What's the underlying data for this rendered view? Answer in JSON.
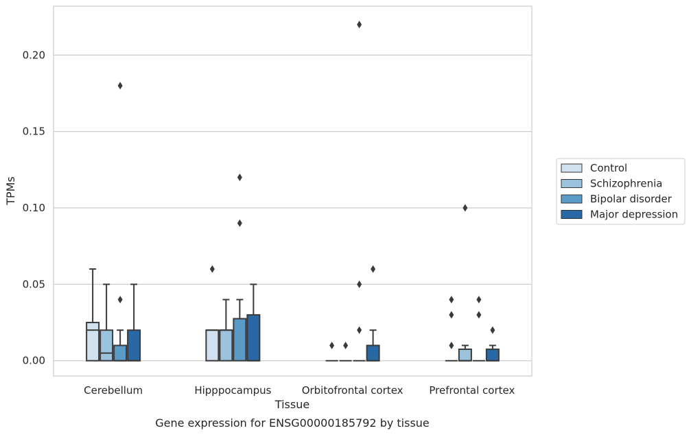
{
  "chart_data": {
    "type": "boxplot",
    "caption": "Gene expression for ENSG00000185792 by tissue",
    "xlabel": "Tissue",
    "ylabel": "TPMs",
    "ylim": [
      -0.01,
      0.232
    ],
    "yticks": [
      0.0,
      0.05,
      0.1,
      0.15,
      0.2
    ],
    "ytick_labels": [
      "0.00",
      "0.05",
      "0.10",
      "0.15",
      "0.20"
    ],
    "grid": "horizontal",
    "legend_position": "right",
    "categories": [
      "Cerebellum",
      "Hipppocampus",
      "Orbitofrontal cortex",
      "Prefrontal cortex"
    ],
    "series": [
      {
        "name": "Control",
        "color": "#d1e1ef",
        "boxes": [
          {
            "q1": 0.0,
            "median": 0.02,
            "q3": 0.025,
            "whisker_low": 0.0,
            "whisker_high": 0.06,
            "outliers": []
          },
          {
            "q1": 0.0,
            "median": 0.02,
            "q3": 0.02,
            "whisker_low": 0.0,
            "whisker_high": 0.02,
            "outliers": [
              0.06
            ]
          },
          {
            "q1": 0.0,
            "median": 0.0,
            "q3": 0.0,
            "whisker_low": 0.0,
            "whisker_high": 0.0,
            "outliers": [
              0.01
            ]
          },
          {
            "q1": 0.0,
            "median": 0.0,
            "q3": 0.0,
            "whisker_low": 0.0,
            "whisker_high": 0.0,
            "outliers": [
              0.01,
              0.03,
              0.04
            ]
          }
        ]
      },
      {
        "name": "Schizophrenia",
        "color": "#9cc3dd",
        "boxes": [
          {
            "q1": 0.0,
            "median": 0.005,
            "q3": 0.02,
            "whisker_low": 0.0,
            "whisker_high": 0.05,
            "outliers": []
          },
          {
            "q1": 0.0,
            "median": 0.02,
            "q3": 0.02,
            "whisker_low": 0.0,
            "whisker_high": 0.04,
            "outliers": []
          },
          {
            "q1": 0.0,
            "median": 0.0,
            "q3": 0.0,
            "whisker_low": 0.0,
            "whisker_high": 0.0,
            "outliers": [
              0.01
            ]
          },
          {
            "q1": 0.0,
            "median": 0.0,
            "q3": 0.0075,
            "whisker_low": 0.0,
            "whisker_high": 0.01,
            "outliers": [
              0.1
            ]
          }
        ]
      },
      {
        "name": "Bipolar disorder",
        "color": "#5a9bc8",
        "boxes": [
          {
            "q1": 0.0,
            "median": 0.0,
            "q3": 0.01,
            "whisker_low": 0.0,
            "whisker_high": 0.02,
            "outliers": [
              0.04,
              0.18
            ]
          },
          {
            "q1": 0.0,
            "median": 0.0275,
            "q3": 0.0275,
            "whisker_low": 0.0,
            "whisker_high": 0.04,
            "outliers": [
              0.09,
              0.12
            ]
          },
          {
            "q1": 0.0,
            "median": 0.0,
            "q3": 0.0,
            "whisker_low": 0.0,
            "whisker_high": 0.0,
            "outliers": [
              0.02,
              0.05,
              0.22
            ]
          },
          {
            "q1": 0.0,
            "median": 0.0,
            "q3": 0.0,
            "whisker_low": 0.0,
            "whisker_high": 0.0,
            "outliers": [
              0.03,
              0.04
            ]
          }
        ]
      },
      {
        "name": "Major depression",
        "color": "#2a68a5",
        "boxes": [
          {
            "q1": 0.0,
            "median": 0.0,
            "q3": 0.02,
            "whisker_low": 0.0,
            "whisker_high": 0.05,
            "outliers": []
          },
          {
            "q1": 0.0,
            "median": 0.0,
            "q3": 0.03,
            "whisker_low": 0.0,
            "whisker_high": 0.05,
            "outliers": []
          },
          {
            "q1": 0.0,
            "median": 0.0,
            "q3": 0.01,
            "whisker_low": 0.0,
            "whisker_high": 0.02,
            "outliers": [
              0.06
            ]
          },
          {
            "q1": 0.0,
            "median": 0.0,
            "q3": 0.0075,
            "whisker_low": 0.0,
            "whisker_high": 0.01,
            "outliers": [
              0.02
            ]
          }
        ]
      }
    ]
  }
}
